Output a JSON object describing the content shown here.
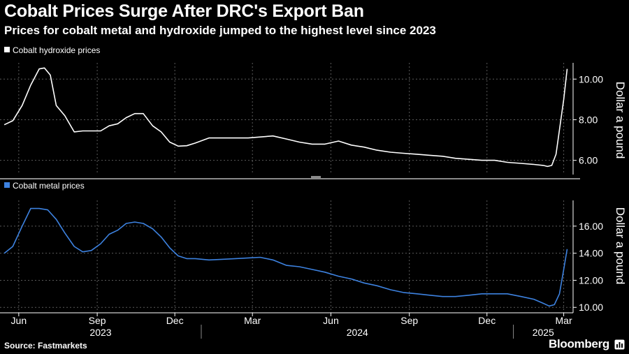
{
  "header": {
    "title": "Cobalt Prices Surge After DRC's Export Ban",
    "subtitle": "Prices for cobalt metal and hydroxide jumped to the highest level since 2023"
  },
  "footer": {
    "source": "Source: Fastmarkets",
    "brand": "Bloomberg"
  },
  "colors": {
    "background": "#000000",
    "hydroxide_line": "#ffffff",
    "metal_line": "#3d82e0",
    "grid": "#5a5a5a"
  },
  "icons": {
    "brand_mark": "bloomberg-terminal-icon"
  },
  "chart_data": [
    {
      "type": "line",
      "series": [
        {
          "name": "Cobalt hydroxide prices",
          "x": [
            "2023-05-15",
            "2023-05-25",
            "2023-06-05",
            "2023-06-15",
            "2023-06-25",
            "2023-07-01",
            "2023-07-08",
            "2023-07-15",
            "2023-07-25",
            "2023-08-05",
            "2023-08-15",
            "2023-08-25",
            "2023-09-05",
            "2023-09-15",
            "2023-09-25",
            "2023-10-05",
            "2023-10-15",
            "2023-10-25",
            "2023-11-05",
            "2023-11-15",
            "2023-11-25",
            "2023-12-05",
            "2023-12-15",
            "2023-12-25",
            "2024-01-10",
            "2024-01-25",
            "2024-02-10",
            "2024-02-25",
            "2024-03-10",
            "2024-03-25",
            "2024-04-10",
            "2024-04-25",
            "2024-05-10",
            "2024-05-25",
            "2024-06-10",
            "2024-06-25",
            "2024-07-10",
            "2024-07-25",
            "2024-08-10",
            "2024-08-25",
            "2024-09-10",
            "2024-09-25",
            "2024-10-10",
            "2024-10-25",
            "2024-11-10",
            "2024-11-25",
            "2024-12-10",
            "2024-12-25",
            "2025-01-10",
            "2025-01-25",
            "2025-02-05",
            "2025-02-10",
            "2025-02-15",
            "2025-02-20",
            "2025-02-25",
            "2025-03-01",
            "2025-03-05"
          ],
          "values": [
            7.75,
            7.95,
            8.7,
            9.7,
            10.5,
            10.55,
            10.2,
            8.7,
            8.2,
            7.4,
            7.45,
            7.45,
            7.45,
            7.7,
            7.8,
            8.1,
            8.3,
            8.3,
            7.7,
            7.4,
            6.9,
            6.7,
            6.72,
            6.85,
            7.1,
            7.1,
            7.1,
            7.1,
            7.15,
            7.2,
            7.05,
            6.9,
            6.8,
            6.8,
            6.95,
            6.75,
            6.65,
            6.5,
            6.4,
            6.35,
            6.3,
            6.25,
            6.2,
            6.1,
            6.05,
            6.0,
            6.0,
            5.9,
            5.85,
            5.8,
            5.75,
            5.7,
            5.75,
            6.3,
            7.8,
            9.0,
            10.5
          ],
          "ylabel": "Dollar a pound",
          "ylim": [
            5.3,
            10.8
          ],
          "yticks": [
            "6.00",
            "8.00",
            "10.00"
          ],
          "grid": true,
          "legend": "top-left"
        }
      ]
    },
    {
      "type": "line",
      "series": [
        {
          "name": "Cobalt metal prices",
          "x": [
            "2023-05-15",
            "2023-05-25",
            "2023-06-05",
            "2023-06-15",
            "2023-06-25",
            "2023-07-05",
            "2023-07-15",
            "2023-07-25",
            "2023-08-05",
            "2023-08-15",
            "2023-08-25",
            "2023-09-05",
            "2023-09-15",
            "2023-09-25",
            "2023-10-05",
            "2023-10-15",
            "2023-10-25",
            "2023-11-05",
            "2023-11-15",
            "2023-11-25",
            "2023-12-05",
            "2023-12-15",
            "2023-12-25",
            "2024-01-10",
            "2024-01-25",
            "2024-02-10",
            "2024-02-25",
            "2024-03-10",
            "2024-03-25",
            "2024-04-10",
            "2024-04-25",
            "2024-05-10",
            "2024-05-25",
            "2024-06-10",
            "2024-06-25",
            "2024-07-10",
            "2024-07-25",
            "2024-08-10",
            "2024-08-25",
            "2024-09-10",
            "2024-09-25",
            "2024-10-10",
            "2024-10-25",
            "2024-11-10",
            "2024-11-25",
            "2024-12-10",
            "2024-12-25",
            "2025-01-10",
            "2025-01-25",
            "2025-02-05",
            "2025-02-12",
            "2025-02-18",
            "2025-02-24",
            "2025-03-01",
            "2025-03-05"
          ],
          "values": [
            14.0,
            14.5,
            16.0,
            17.3,
            17.3,
            17.2,
            16.5,
            15.5,
            14.5,
            14.1,
            14.2,
            14.7,
            15.4,
            15.7,
            16.2,
            16.3,
            16.2,
            15.8,
            15.2,
            14.4,
            13.8,
            13.6,
            13.6,
            13.5,
            13.55,
            13.6,
            13.65,
            13.7,
            13.5,
            13.1,
            13.0,
            12.8,
            12.6,
            12.3,
            12.1,
            11.8,
            11.6,
            11.3,
            11.1,
            11.0,
            10.9,
            10.8,
            10.8,
            10.9,
            11.0,
            11.0,
            11.0,
            10.8,
            10.6,
            10.3,
            10.1,
            10.2,
            11.0,
            12.8,
            14.3
          ],
          "ylabel": "Dollar a pound",
          "ylim": [
            9.6,
            17.9
          ],
          "yticks": [
            "10.00",
            "12.00",
            "14.00",
            "16.00"
          ],
          "grid": true,
          "legend": "top-left"
        }
      ]
    }
  ],
  "xaxis": {
    "months": [
      {
        "label": "Jun",
        "date": "2023-06-01"
      },
      {
        "label": "Sep",
        "date": "2023-09-01"
      },
      {
        "label": "Dec",
        "date": "2023-12-01"
      },
      {
        "label": "Mar",
        "date": "2024-03-01"
      },
      {
        "label": "Jun",
        "date": "2024-06-01"
      },
      {
        "label": "Sep",
        "date": "2024-09-01"
      },
      {
        "label": "Dec",
        "date": "2024-12-01"
      },
      {
        "label": "Mar",
        "date": "2025-03-01"
      }
    ],
    "years": [
      {
        "label": "2023",
        "span": [
          "2023-05-10",
          "2024-01-01"
        ]
      },
      {
        "label": "2024",
        "span": [
          "2024-01-01",
          "2025-01-01"
        ]
      },
      {
        "label": "2025",
        "span": [
          "2025-01-01",
          "2025-03-12"
        ]
      }
    ],
    "range": [
      "2023-05-10",
      "2025-03-12"
    ]
  }
}
